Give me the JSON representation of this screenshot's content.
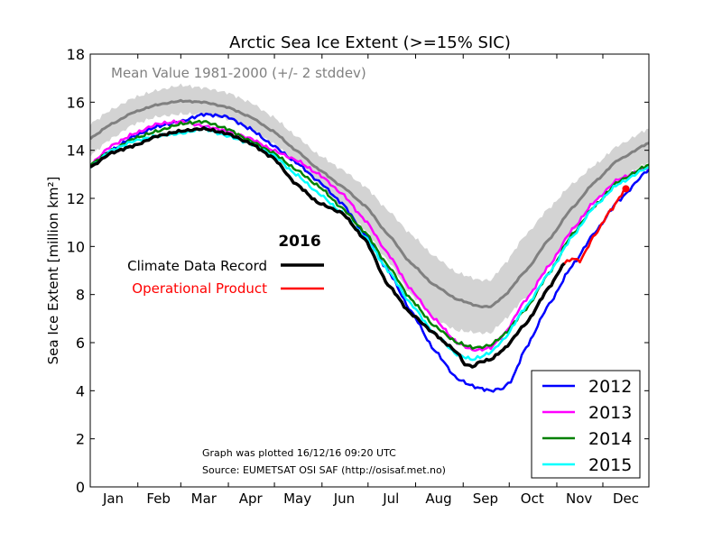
{
  "chart_data": {
    "type": "line",
    "title": "Arctic Sea Ice Extent (>=15% SIC)",
    "ylabel": "Sea Ice Extent [million km²]",
    "xlabel": "",
    "ylim": [
      0,
      18
    ],
    "xlim": [
      1,
      365
    ],
    "yticks": [
      0,
      2,
      4,
      6,
      8,
      10,
      12,
      14,
      16,
      18
    ],
    "month_labels": [
      "Jan",
      "Feb",
      "Mar",
      "Apr",
      "May",
      "Jun",
      "Jul",
      "Aug",
      "Sep",
      "Oct",
      "Nov",
      "Dec"
    ],
    "grid": false,
    "mean_band": {
      "label": "Mean Value 1981-2000 (+/- 2 stddev)",
      "color": "#808080",
      "band_color": "#d3d3d3",
      "day": [
        1,
        15,
        30,
        45,
        60,
        75,
        90,
        105,
        120,
        135,
        150,
        165,
        180,
        195,
        210,
        225,
        240,
        255,
        262,
        270,
        285,
        300,
        315,
        330,
        345,
        365
      ],
      "mean": [
        14.5,
        15.1,
        15.6,
        15.9,
        16.05,
        16.0,
        15.8,
        15.4,
        14.8,
        14.0,
        13.2,
        12.5,
        11.7,
        10.5,
        9.3,
        8.4,
        7.8,
        7.5,
        7.5,
        7.9,
        9.0,
        10.3,
        11.6,
        12.7,
        13.6,
        14.3
      ],
      "lower": [
        13.8,
        14.5,
        15.1,
        15.4,
        15.5,
        15.5,
        15.3,
        14.9,
        14.3,
        13.5,
        12.6,
        11.7,
        10.7,
        9.4,
        8.0,
        7.0,
        6.5,
        6.4,
        6.4,
        6.9,
        7.9,
        9.2,
        10.6,
        11.9,
        12.8,
        13.5
      ],
      "upper": [
        15.1,
        15.7,
        16.2,
        16.5,
        16.7,
        16.6,
        16.4,
        16.0,
        15.4,
        14.6,
        13.8,
        13.2,
        12.5,
        11.5,
        10.5,
        9.6,
        8.9,
        8.6,
        8.6,
        9.2,
        10.5,
        11.6,
        12.6,
        13.4,
        14.2,
        14.9
      ]
    },
    "series": [
      {
        "name": "2012",
        "color": "#0000ff",
        "day": [
          1,
          15,
          30,
          45,
          60,
          75,
          90,
          105,
          120,
          135,
          150,
          165,
          180,
          195,
          210,
          225,
          240,
          250,
          255,
          262,
          270,
          275,
          285,
          300,
          315,
          330,
          345,
          365
        ],
        "values": [
          13.4,
          14.0,
          14.6,
          15.0,
          15.2,
          15.5,
          15.4,
          14.9,
          14.2,
          13.5,
          12.7,
          11.8,
          10.5,
          9.0,
          7.3,
          5.7,
          4.5,
          4.2,
          4.1,
          4.0,
          4.1,
          4.4,
          5.8,
          7.6,
          9.2,
          10.6,
          11.9,
          13.2
        ]
      },
      {
        "name": "2013",
        "color": "#ff00ff",
        "day": [
          1,
          15,
          30,
          45,
          60,
          75,
          90,
          105,
          120,
          135,
          150,
          165,
          180,
          195,
          210,
          225,
          240,
          250,
          255,
          262,
          270,
          285,
          300,
          315,
          330,
          345,
          365
        ],
        "values": [
          13.4,
          14.2,
          14.7,
          15.1,
          15.2,
          15.0,
          14.8,
          14.5,
          14.0,
          13.6,
          13.0,
          12.2,
          11.1,
          9.7,
          8.2,
          7.0,
          6.0,
          5.7,
          5.7,
          5.8,
          6.3,
          7.8,
          9.2,
          10.7,
          11.9,
          12.8,
          13.3
        ]
      },
      {
        "name": "2014",
        "color": "#008000",
        "day": [
          1,
          15,
          30,
          45,
          60,
          75,
          90,
          105,
          120,
          135,
          150,
          165,
          180,
          195,
          210,
          225,
          240,
          250,
          255,
          262,
          270,
          285,
          300,
          315,
          330,
          345,
          365
        ],
        "values": [
          13.4,
          14.0,
          14.5,
          14.8,
          15.1,
          15.2,
          14.9,
          14.4,
          13.9,
          13.2,
          12.5,
          11.6,
          10.6,
          9.2,
          7.8,
          6.7,
          6.0,
          5.8,
          5.8,
          5.9,
          6.3,
          7.4,
          8.9,
          10.5,
          11.7,
          12.7,
          13.4
        ]
      },
      {
        "name": "2015",
        "color": "#00ffff",
        "day": [
          1,
          15,
          30,
          45,
          60,
          75,
          90,
          105,
          120,
          135,
          150,
          165,
          180,
          195,
          210,
          225,
          240,
          250,
          255,
          262,
          270,
          285,
          300,
          315,
          330,
          345,
          365
        ],
        "values": [
          13.3,
          14.0,
          14.4,
          14.6,
          14.7,
          14.9,
          14.6,
          14.3,
          13.8,
          13.0,
          12.2,
          11.4,
          10.4,
          9.0,
          7.6,
          6.4,
          5.5,
          5.3,
          5.4,
          5.6,
          6.1,
          7.5,
          8.9,
          10.4,
          11.7,
          12.6,
          13.3
        ]
      },
      {
        "name": "2016",
        "label": "Climate Data Record",
        "color": "#000000",
        "width": 3.5,
        "day": [
          1,
          15,
          30,
          45,
          60,
          75,
          90,
          105,
          120,
          135,
          150,
          165,
          180,
          195,
          210,
          225,
          232,
          240,
          245,
          250,
          255,
          262,
          270,
          285,
          300,
          310
        ],
        "values": [
          13.3,
          13.9,
          14.2,
          14.6,
          14.8,
          14.9,
          14.7,
          14.3,
          13.7,
          12.6,
          11.8,
          11.4,
          10.3,
          8.4,
          7.2,
          6.4,
          6.0,
          5.6,
          5.1,
          5.0,
          5.2,
          5.3,
          5.7,
          6.8,
          8.3,
          9.3
        ]
      },
      {
        "name": "2016",
        "label": "Operational Product",
        "color": "#ff0000",
        "width": 2.5,
        "day": [
          310,
          315,
          320,
          330,
          340,
          350
        ],
        "values": [
          9.3,
          9.5,
          9.4,
          10.5,
          11.5,
          12.4
        ],
        "end_marker": {
          "day": 350,
          "value": 12.4
        }
      }
    ],
    "legend": {
      "placement": "bottom-right",
      "entries": [
        "2012",
        "2013",
        "2014",
        "2015"
      ]
    },
    "inline_legend": {
      "title": "2016",
      "entries": [
        "Climate Data Record",
        "Operational Product"
      ]
    },
    "annotations": [
      "Graph was plotted 16/12/16 09:20 UTC",
      "Source: EUMETSAT OSI SAF (http://osisaf.met.no)"
    ]
  }
}
